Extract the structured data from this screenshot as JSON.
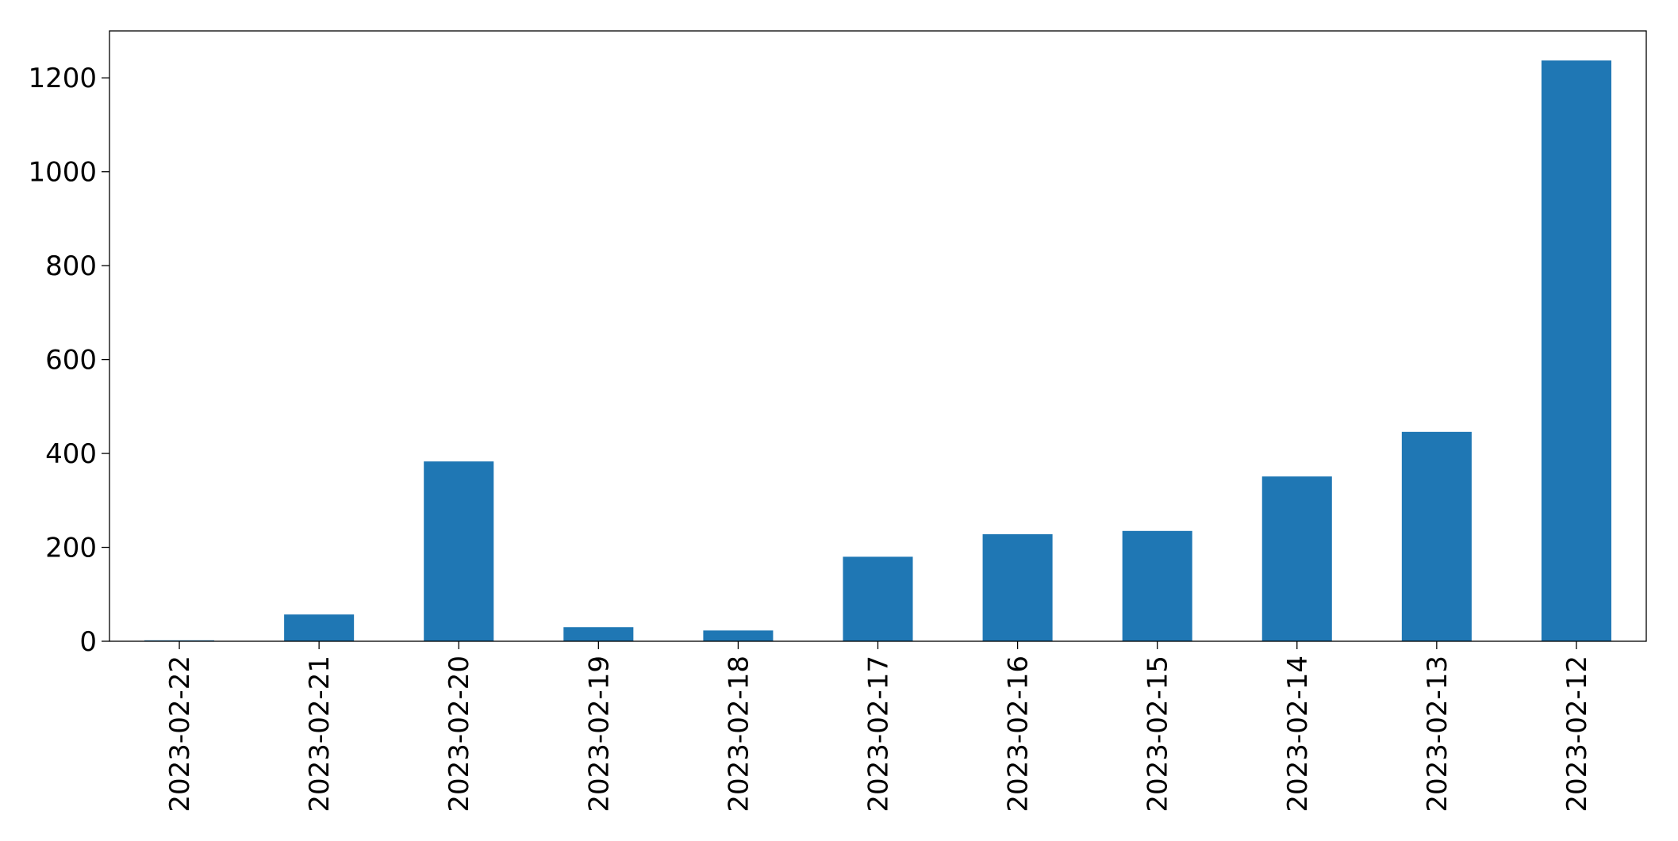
{
  "chart_data": {
    "type": "bar",
    "categories": [
      "2023-02-22",
      "2023-02-21",
      "2023-02-20",
      "2023-02-19",
      "2023-02-18",
      "2023-02-17",
      "2023-02-16",
      "2023-02-15",
      "2023-02-14",
      "2023-02-13",
      "2023-02-12"
    ],
    "values": [
      2,
      57,
      383,
      30,
      23,
      180,
      228,
      235,
      351,
      446,
      1237
    ],
    "color": "#1f77b4",
    "ylim": [
      0,
      1300
    ],
    "yticks": [
      0,
      200,
      400,
      600,
      800,
      1000,
      1200
    ],
    "grid": false
  }
}
